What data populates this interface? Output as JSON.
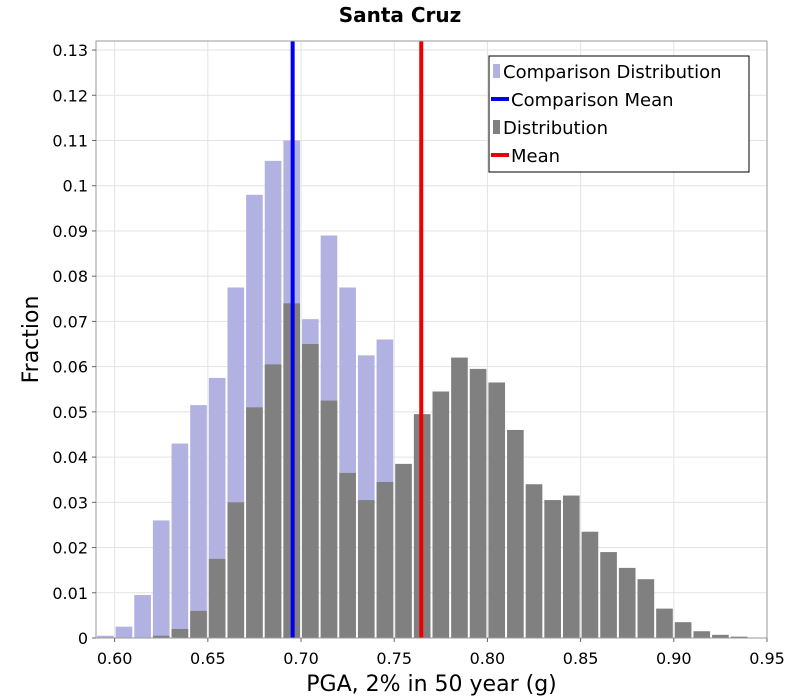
{
  "chart_data": {
    "type": "bar",
    "title": "Santa Cruz",
    "xlabel": "PGA, 2% in 50 year (g)",
    "ylabel": "Fraction",
    "xlim": [
      0.59,
      0.95
    ],
    "ylim": [
      0,
      0.132
    ],
    "bin_width": 0.01,
    "x_ticks": [
      {
        "value": 0.6,
        "label": "0.60"
      },
      {
        "value": 0.65,
        "label": "0.65"
      },
      {
        "value": 0.7,
        "label": "0.70"
      },
      {
        "value": 0.75,
        "label": "0.75"
      },
      {
        "value": 0.8,
        "label": "0.80"
      },
      {
        "value": 0.85,
        "label": "0.85"
      },
      {
        "value": 0.9,
        "label": "0.90"
      },
      {
        "value": 0.95,
        "label": "0.95"
      }
    ],
    "y_ticks": [
      {
        "value": 0,
        "label": "0"
      },
      {
        "value": 0.01,
        "label": "0.01"
      },
      {
        "value": 0.02,
        "label": "0.02"
      },
      {
        "value": 0.03,
        "label": "0.03"
      },
      {
        "value": 0.04,
        "label": "0.04"
      },
      {
        "value": 0.05,
        "label": "0.05"
      },
      {
        "value": 0.06,
        "label": "0.06"
      },
      {
        "value": 0.07,
        "label": "0.07"
      },
      {
        "value": 0.08,
        "label": "0.08"
      },
      {
        "value": 0.09,
        "label": "0.09"
      },
      {
        "value": 0.1,
        "label": "0.1"
      },
      {
        "value": 0.11,
        "label": "0.11"
      },
      {
        "value": 0.12,
        "label": "0.12"
      },
      {
        "value": 0.13,
        "label": "0.13"
      }
    ],
    "grid": true,
    "legend_position": "top-right",
    "series": [
      {
        "name": "Comparison Distribution",
        "color": "#b2b2e2",
        "bin_centers": [
          0.595,
          0.605,
          0.615,
          0.625,
          0.635,
          0.645,
          0.655,
          0.665,
          0.675,
          0.685,
          0.695,
          0.705,
          0.715,
          0.725,
          0.735,
          0.745
        ],
        "values": [
          0.0005,
          0.0025,
          0.0095,
          0.026,
          0.043,
          0.0515,
          0.0575,
          0.0775,
          0.098,
          0.1055,
          0.11,
          0.0705,
          0.089,
          0.0775,
          0.0625,
          0.066
        ]
      },
      {
        "name": "Distribution",
        "color": "#808080",
        "bin_centers": [
          0.625,
          0.635,
          0.645,
          0.655,
          0.665,
          0.675,
          0.685,
          0.695,
          0.705,
          0.715,
          0.725,
          0.735,
          0.745,
          0.755,
          0.765,
          0.775,
          0.785,
          0.795,
          0.805,
          0.815,
          0.825,
          0.835,
          0.845,
          0.855,
          0.865,
          0.875,
          0.885,
          0.895,
          0.905,
          0.915,
          0.925,
          0.935
        ],
        "values": [
          0.0005,
          0.002,
          0.006,
          0.0175,
          0.03,
          0.051,
          0.0605,
          0.074,
          0.065,
          0.0525,
          0.0365,
          0.0305,
          0.0345,
          0.0385,
          0.0495,
          0.0545,
          0.062,
          0.0595,
          0.0565,
          0.046,
          0.034,
          0.0305,
          0.0315,
          0.0235,
          0.019,
          0.0155,
          0.013,
          0.0065,
          0.0035,
          0.0015,
          0.0007,
          0.0003
        ]
      }
    ],
    "vlines": [
      {
        "name": "Comparison Mean",
        "color": "#0000ee",
        "x": 0.6955
      },
      {
        "name": "Mean",
        "color": "#ee0000",
        "x": 0.7645
      }
    ],
    "legend": [
      {
        "label": "Comparison Distribution",
        "kind": "bar",
        "color": "#b2b2e2"
      },
      {
        "label": "Comparison Mean",
        "kind": "line",
        "color": "#0000ee"
      },
      {
        "label": "Distribution",
        "kind": "bar",
        "color": "#808080"
      },
      {
        "label": "Mean",
        "kind": "line",
        "color": "#ee0000"
      }
    ]
  }
}
